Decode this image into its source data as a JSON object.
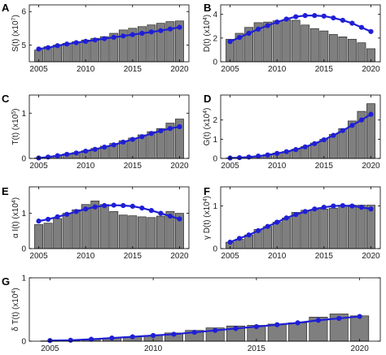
{
  "figure": {
    "x_ticks": [
      "2005",
      "2010",
      "2015",
      "2020"
    ]
  },
  "colors": {
    "bar_fill": "#7f7f7f",
    "bar_stroke": "#2b2b2b",
    "line": "#1f1fd6",
    "marker": "#1f1fd6",
    "axis": "#000000"
  },
  "chart_data": [
    {
      "letter": "A",
      "type": "bar",
      "ylabel": "S(t) (x10",
      "ylabel_exp": "7",
      "ylabel_end": ")",
      "x": [
        2005,
        2006,
        2007,
        2008,
        2009,
        2010,
        2011,
        2012,
        2013,
        2014,
        2015,
        2016,
        2017,
        2018,
        2019,
        2020
      ],
      "bars": [
        4.85,
        4.95,
        5.0,
        5.05,
        5.1,
        5.15,
        5.2,
        5.25,
        5.35,
        5.45,
        5.5,
        5.55,
        5.6,
        5.65,
        5.7,
        5.72
      ],
      "line": [
        4.88,
        4.92,
        4.98,
        5.03,
        5.07,
        5.11,
        5.15,
        5.19,
        5.23,
        5.27,
        5.31,
        5.35,
        5.39,
        5.43,
        5.48,
        5.53
      ],
      "ylim": [
        4.5,
        6.2
      ],
      "yticks": [
        5,
        6
      ],
      "ytick_labels": [
        "5",
        "6"
      ]
    },
    {
      "letter": "B",
      "type": "bar",
      "ylabel": "D(t) (x10",
      "ylabel_exp": "4",
      "ylabel_end": ")",
      "x": [
        2005,
        2006,
        2007,
        2008,
        2009,
        2010,
        2011,
        2012,
        2013,
        2014,
        2015,
        2016,
        2017,
        2018,
        2019,
        2020
      ],
      "bars": [
        1.9,
        2.4,
        2.9,
        3.3,
        3.35,
        3.45,
        3.55,
        3.5,
        3.1,
        2.8,
        2.6,
        2.3,
        2.1,
        1.9,
        1.6,
        1.1
      ],
      "line": [
        1.7,
        2.05,
        2.4,
        2.75,
        3.05,
        3.35,
        3.6,
        3.8,
        3.9,
        3.9,
        3.85,
        3.7,
        3.5,
        3.25,
        2.9,
        2.55
      ],
      "ylim": [
        0,
        4.8
      ],
      "yticks": [
        0,
        2,
        4
      ],
      "ytick_labels": [
        "0",
        "2",
        "4"
      ]
    },
    {
      "letter": "C",
      "type": "bar",
      "ylabel": "T(t) (x10",
      "ylabel_exp": "5",
      "ylabel_end": ")",
      "x": [
        2005,
        2006,
        2007,
        2008,
        2009,
        2010,
        2011,
        2012,
        2013,
        2014,
        2015,
        2016,
        2017,
        2018,
        2019,
        2020
      ],
      "bars": [
        0.01,
        0.03,
        0.06,
        0.1,
        0.13,
        0.17,
        0.22,
        0.27,
        0.33,
        0.39,
        0.45,
        0.52,
        0.59,
        0.66,
        0.78,
        0.87
      ],
      "line": [
        0.01,
        0.03,
        0.06,
        0.09,
        0.12,
        0.16,
        0.2,
        0.25,
        0.3,
        0.36,
        0.42,
        0.48,
        0.55,
        0.61,
        0.66,
        0.7
      ],
      "ylim": [
        0,
        1.4
      ],
      "yticks": [
        0,
        1
      ],
      "ytick_labels": [
        "0",
        "1"
      ]
    },
    {
      "letter": "D",
      "type": "bar",
      "ylabel": "G(t) (x10",
      "ylabel_exp": "4",
      "ylabel_end": ")",
      "x": [
        2005,
        2006,
        2007,
        2008,
        2009,
        2010,
        2011,
        2012,
        2013,
        2014,
        2015,
        2016,
        2017,
        2018,
        2019,
        2020
      ],
      "bars": [
        0.02,
        0.04,
        0.08,
        0.13,
        0.2,
        0.28,
        0.36,
        0.48,
        0.62,
        0.8,
        1.0,
        1.25,
        1.55,
        1.95,
        2.45,
        2.85
      ],
      "line": [
        0.02,
        0.04,
        0.07,
        0.12,
        0.18,
        0.26,
        0.35,
        0.46,
        0.6,
        0.77,
        0.97,
        1.2,
        1.45,
        1.72,
        2.0,
        2.3
      ],
      "ylim": [
        0,
        3.3
      ],
      "yticks": [
        0,
        1,
        2
      ],
      "ytick_labels": [
        "0",
        "1",
        "2"
      ]
    },
    {
      "letter": "E",
      "type": "bar",
      "ylabel": "α I(t) (x10",
      "ylabel_exp": "4",
      "ylabel_end": ")",
      "x": [
        2005,
        2006,
        2007,
        2008,
        2009,
        2010,
        2011,
        2012,
        2013,
        2014,
        2015,
        2016,
        2017,
        2018,
        2019,
        2020
      ],
      "bars": [
        0.68,
        0.72,
        0.85,
        1.0,
        1.1,
        1.25,
        1.35,
        1.25,
        1.05,
        0.95,
        0.93,
        0.9,
        0.88,
        0.92,
        1.05,
        1.0
      ],
      "line": [
        0.78,
        0.83,
        0.9,
        0.97,
        1.05,
        1.12,
        1.18,
        1.22,
        1.23,
        1.22,
        1.2,
        1.15,
        1.08,
        1.0,
        0.92,
        0.84
      ],
      "ylim": [
        0,
        1.75
      ],
      "yticks": [
        0,
        1
      ],
      "ytick_labels": [
        "0",
        "1"
      ]
    },
    {
      "letter": "F",
      "type": "bar",
      "ylabel": "γ D(t) (x10",
      "ylabel_exp": "4",
      "ylabel_end": ")",
      "x": [
        2005,
        2006,
        2007,
        2008,
        2009,
        2010,
        2011,
        2012,
        2013,
        2014,
        2015,
        2016,
        2017,
        2018,
        2019,
        2020
      ],
      "bars": [
        0.15,
        0.22,
        0.32,
        0.45,
        0.52,
        0.62,
        0.72,
        0.85,
        0.9,
        0.92,
        0.93,
        0.95,
        1.0,
        1.02,
        1.02,
        1.02
      ],
      "line": [
        0.15,
        0.24,
        0.32,
        0.42,
        0.52,
        0.62,
        0.72,
        0.8,
        0.87,
        0.93,
        0.97,
        1.0,
        1.01,
        1.0,
        0.97,
        0.93
      ],
      "ylim": [
        0,
        1.45
      ],
      "yticks": [
        0,
        1
      ],
      "ytick_labels": [
        "0",
        "1"
      ]
    },
    {
      "letter": "G",
      "type": "bar",
      "ylabel": "δ T(t) (x10",
      "ylabel_exp": "4",
      "ylabel_end": ")",
      "x": [
        2005,
        2006,
        2007,
        2008,
        2009,
        2010,
        2011,
        2012,
        2013,
        2014,
        2015,
        2016,
        2017,
        2018,
        2019,
        2020
      ],
      "bars": [
        0.005,
        0.01,
        0.03,
        0.05,
        0.07,
        0.09,
        0.13,
        0.17,
        0.21,
        0.24,
        0.25,
        0.27,
        0.29,
        0.38,
        0.43,
        0.4
      ],
      "line": [
        0.01,
        0.015,
        0.03,
        0.05,
        0.07,
        0.09,
        0.11,
        0.14,
        0.17,
        0.2,
        0.23,
        0.26,
        0.29,
        0.33,
        0.36,
        0.39
      ],
      "ylim": [
        0,
        1.0
      ],
      "yticks": [
        0,
        1
      ],
      "ytick_labels": [
        "0",
        "1"
      ]
    }
  ]
}
